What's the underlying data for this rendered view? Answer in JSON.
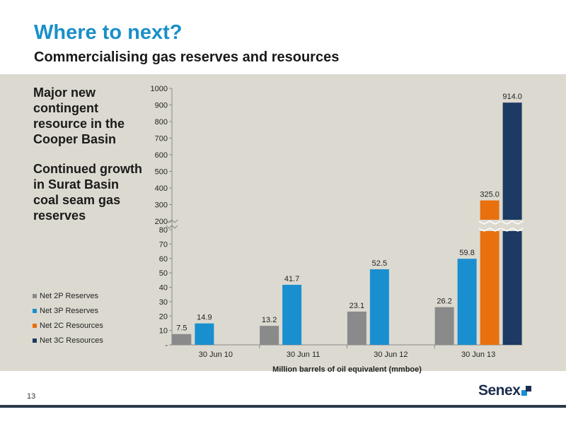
{
  "header": {
    "title": "Where to next?",
    "subtitle": "Commercialising gas reserves and resources"
  },
  "side_text": {
    "para1": "Major new contingent resource in the Cooper Basin",
    "para2": "Continued growth in Surat Basin coal seam gas reserves"
  },
  "footer": {
    "page_number": "13",
    "logo_text": "Senex"
  },
  "colors": {
    "net_2p": "#8a8a8a",
    "net_3p": "#1a8fd0",
    "net_2c": "#e8700f",
    "net_3c": "#1c3a63",
    "panel": "#dcdad0"
  },
  "chart_data": {
    "type": "bar",
    "xlabel": "Million barrels of oil equivalent (mmboe)",
    "categories": [
      "30 Jun 10",
      "30 Jun 11",
      "30 Jun 12",
      "30 Jun 13"
    ],
    "series": [
      {
        "name": "Net 2P Reserves",
        "values": [
          7.5,
          13.2,
          23.1,
          26.2
        ],
        "labels": [
          "7.5",
          "13.2",
          "23.1",
          "26.2"
        ]
      },
      {
        "name": "Net 3P Reserves",
        "values": [
          14.9,
          41.7,
          52.5,
          59.8
        ],
        "labels": [
          "14.9",
          "41.7",
          "52.5",
          "59.8"
        ]
      },
      {
        "name": "Net 2C Resources",
        "values": [
          null,
          null,
          null,
          325.0
        ],
        "labels": [
          null,
          null,
          null,
          "325.0"
        ]
      },
      {
        "name": "Net 3C Resources",
        "values": [
          null,
          null,
          null,
          914.0
        ],
        "labels": [
          null,
          null,
          null,
          "914.0"
        ]
      }
    ],
    "lower_axis": {
      "min": 0,
      "max": 80,
      "ticks": [
        "-",
        "10",
        "20",
        "30",
        "40",
        "50",
        "60",
        "70",
        "80"
      ]
    },
    "upper_axis": {
      "min": 200,
      "max": 1000,
      "ticks": [
        "200",
        "300",
        "400",
        "500",
        "600",
        "700",
        "800",
        "900",
        "1000"
      ]
    },
    "axis_break": "between 80 and 200",
    "legend_placement": "left",
    "grid": false
  }
}
